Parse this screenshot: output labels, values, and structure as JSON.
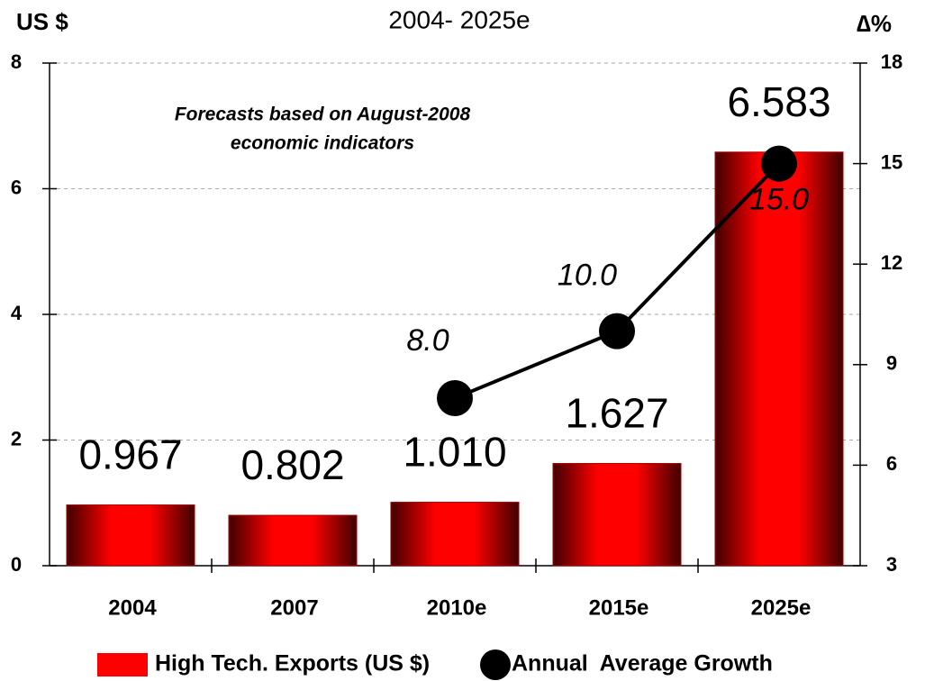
{
  "chart_data": {
    "type": "bar",
    "title": "2004- 2025e",
    "y_label": "US $",
    "y2_label": "∆%",
    "annotation": [
      "Forecasts based on August-2008",
      "economic indicators"
    ],
    "categories": [
      "2004",
      "2007",
      "2010e",
      "2015e",
      "2025e"
    ],
    "series": [
      {
        "name": "High Tech. Exports (US $)",
        "color": "#ff0000",
        "type": "bar",
        "values": [
          0.967,
          0.802,
          1.01,
          1.627,
          6.583
        ],
        "value_labels": [
          "0.967",
          "0.802",
          "1.010",
          "1.627",
          "6.583"
        ]
      },
      {
        "name": "Annual  Average Growth",
        "color": "#000000",
        "type": "line",
        "axis": "y2",
        "values": [
          null,
          null,
          8.0,
          10.0,
          15.0
        ],
        "value_labels": [
          null,
          null,
          "8.0",
          "10.0",
          "15.0"
        ]
      }
    ],
    "ylim": [
      0,
      8
    ],
    "yticks": [
      0,
      2,
      4,
      6,
      8
    ],
    "y2lim": [
      3,
      18
    ],
    "y2ticks": [
      3,
      6,
      9,
      12,
      15,
      18
    ],
    "grid": true
  }
}
